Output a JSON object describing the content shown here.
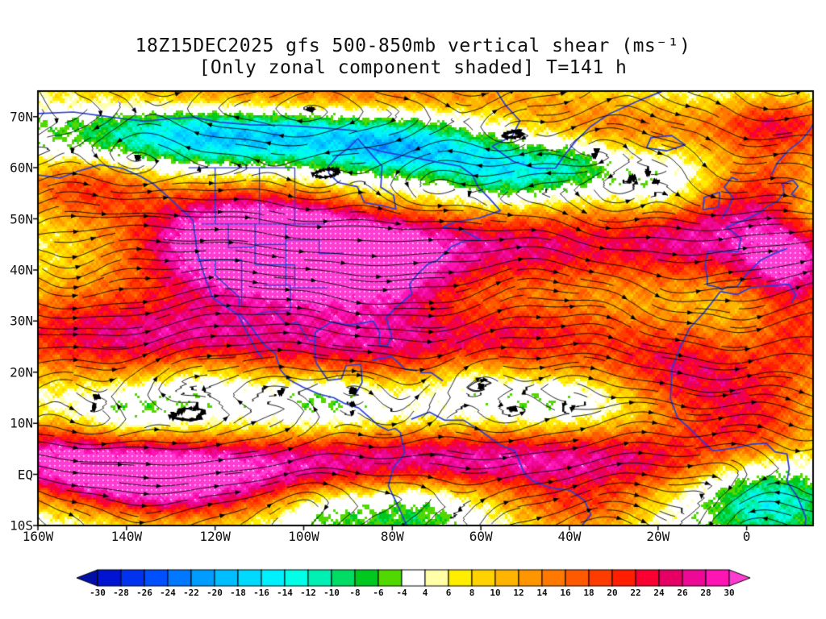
{
  "title": {
    "line1": "18Z15DEC2025 gfs 500-850mb vertical shear (ms⁻¹)",
    "line2": "[Only zonal component shaded] T=141 h"
  },
  "chart_data": {
    "type": "heatmap",
    "title": "18Z15DEC2025 gfs 500-850mb vertical shear (ms⁻¹)",
    "subtitle": "[Only zonal component shaded] T=141 h",
    "units": "ms⁻¹",
    "shading": "zonal component of 500-850mb vertical shear, with shear streamlines (black) and coastlines/borders (blue)",
    "x_tick_labels": [
      "160W",
      "140W",
      "120W",
      "100W",
      "80W",
      "60W",
      "40W",
      "20W",
      "0"
    ],
    "x_tick_values": [
      -160,
      -140,
      -120,
      -100,
      -80,
      -60,
      -40,
      -20,
      0
    ],
    "y_tick_labels": [
      "70N",
      "60N",
      "50N",
      "40N",
      "30N",
      "20N",
      "10N",
      "EQ",
      "10S"
    ],
    "y_tick_values": [
      70,
      60,
      50,
      40,
      30,
      20,
      10,
      0,
      -10
    ],
    "lon_domain": [
      -160,
      15
    ],
    "lat_domain": [
      -10,
      75
    ],
    "grid": false,
    "colorbar": {
      "levels": [
        -30,
        -28,
        -26,
        -24,
        -22,
        -20,
        -18,
        -16,
        -14,
        -12,
        -10,
        -8,
        -6,
        -4,
        4,
        6,
        8,
        10,
        12,
        14,
        16,
        18,
        20,
        22,
        24,
        26,
        28,
        30
      ],
      "below_color": "#000faa",
      "cell_colors": [
        "#0014d2",
        "#0032f0",
        "#0050ff",
        "#0078ff",
        "#009cff",
        "#00beff",
        "#00daff",
        "#00f0ff",
        "#00ffe6",
        "#00f0b4",
        "#00dc64",
        "#00c81e",
        "#50d800",
        "#ffffff",
        "#ffffa8",
        "#ffee00",
        "#ffd200",
        "#ffb400",
        "#ff9600",
        "#ff7800",
        "#ff5a00",
        "#ff3c00",
        "#ff1e00",
        "#fa0032",
        "#e60064",
        "#ee0896",
        "#ff14b4"
      ],
      "above_color": "#ff3cd2"
    },
    "approx_field": {
      "description": "Gaussian components [lon, lat, sigma_lon, sigma_lat, amplitude m/s] approximating the shaded zonal shear field read from the map",
      "blobs": [
        [
          -117,
          46,
          15,
          8,
          30
        ],
        [
          -98,
          43,
          12,
          7,
          24
        ],
        [
          -80,
          41,
          10,
          6,
          18
        ],
        [
          -52,
          45,
          22,
          6,
          16
        ],
        [
          -10,
          47,
          14,
          7,
          18
        ],
        [
          10,
          42,
          8,
          6,
          26
        ],
        [
          -150,
          57,
          12,
          5,
          18
        ],
        [
          8,
          57,
          12,
          6,
          16
        ],
        [
          -30,
          68,
          25,
          4,
          14
        ],
        [
          8,
          69,
          10,
          4,
          16
        ],
        [
          -100,
          74.5,
          45,
          3,
          16
        ],
        [
          -150,
          28,
          22,
          7,
          18
        ],
        [
          -120,
          25,
          15,
          6,
          10
        ],
        [
          -88,
          26,
          16,
          6,
          14
        ],
        [
          -50,
          27,
          20,
          6,
          14
        ],
        [
          -15,
          20,
          12,
          7,
          16
        ],
        [
          2,
          12,
          12,
          7,
          18
        ],
        [
          12,
          27,
          8,
          6,
          14
        ],
        [
          -140,
          0,
          16,
          5,
          26
        ],
        [
          -110,
          1,
          18,
          5,
          14
        ],
        [
          -70,
          3,
          20,
          5,
          14
        ],
        [
          -30,
          3,
          20,
          5,
          13
        ],
        [
          -160,
          5,
          10,
          5,
          16
        ],
        [
          -80,
          45,
          65,
          7,
          10
        ],
        [
          -80,
          26,
          65,
          7,
          8
        ],
        [
          -75,
          3,
          75,
          5,
          12
        ],
        [
          -38,
          -7,
          12,
          4,
          14
        ],
        [
          -125,
          -6,
          15,
          4,
          10
        ],
        [
          -118,
          66,
          26,
          4.5,
          -20
        ],
        [
          -75,
          64,
          14,
          4,
          -16
        ],
        [
          -55,
          59,
          9,
          4.5,
          -14
        ],
        [
          -40,
          61,
          7,
          4,
          -10
        ],
        [
          -20,
          56,
          8,
          4,
          -10
        ],
        [
          14,
          52,
          6,
          5,
          -10
        ],
        [
          -123,
          19,
          9,
          4,
          -9
        ],
        [
          -96,
          16,
          8,
          3.5,
          -7
        ],
        [
          -140,
          13,
          8,
          3,
          -6
        ],
        [
          -62,
          19,
          6,
          3,
          -6
        ],
        [
          -45,
          15,
          10,
          3,
          -6
        ],
        [
          -75,
          -6,
          9,
          5,
          -10
        ],
        [
          4,
          -3,
          11,
          6,
          -18
        ],
        [
          -95,
          -7,
          8,
          4,
          -8
        ],
        [
          -90,
          13,
          60,
          4,
          -4
        ]
      ]
    }
  }
}
